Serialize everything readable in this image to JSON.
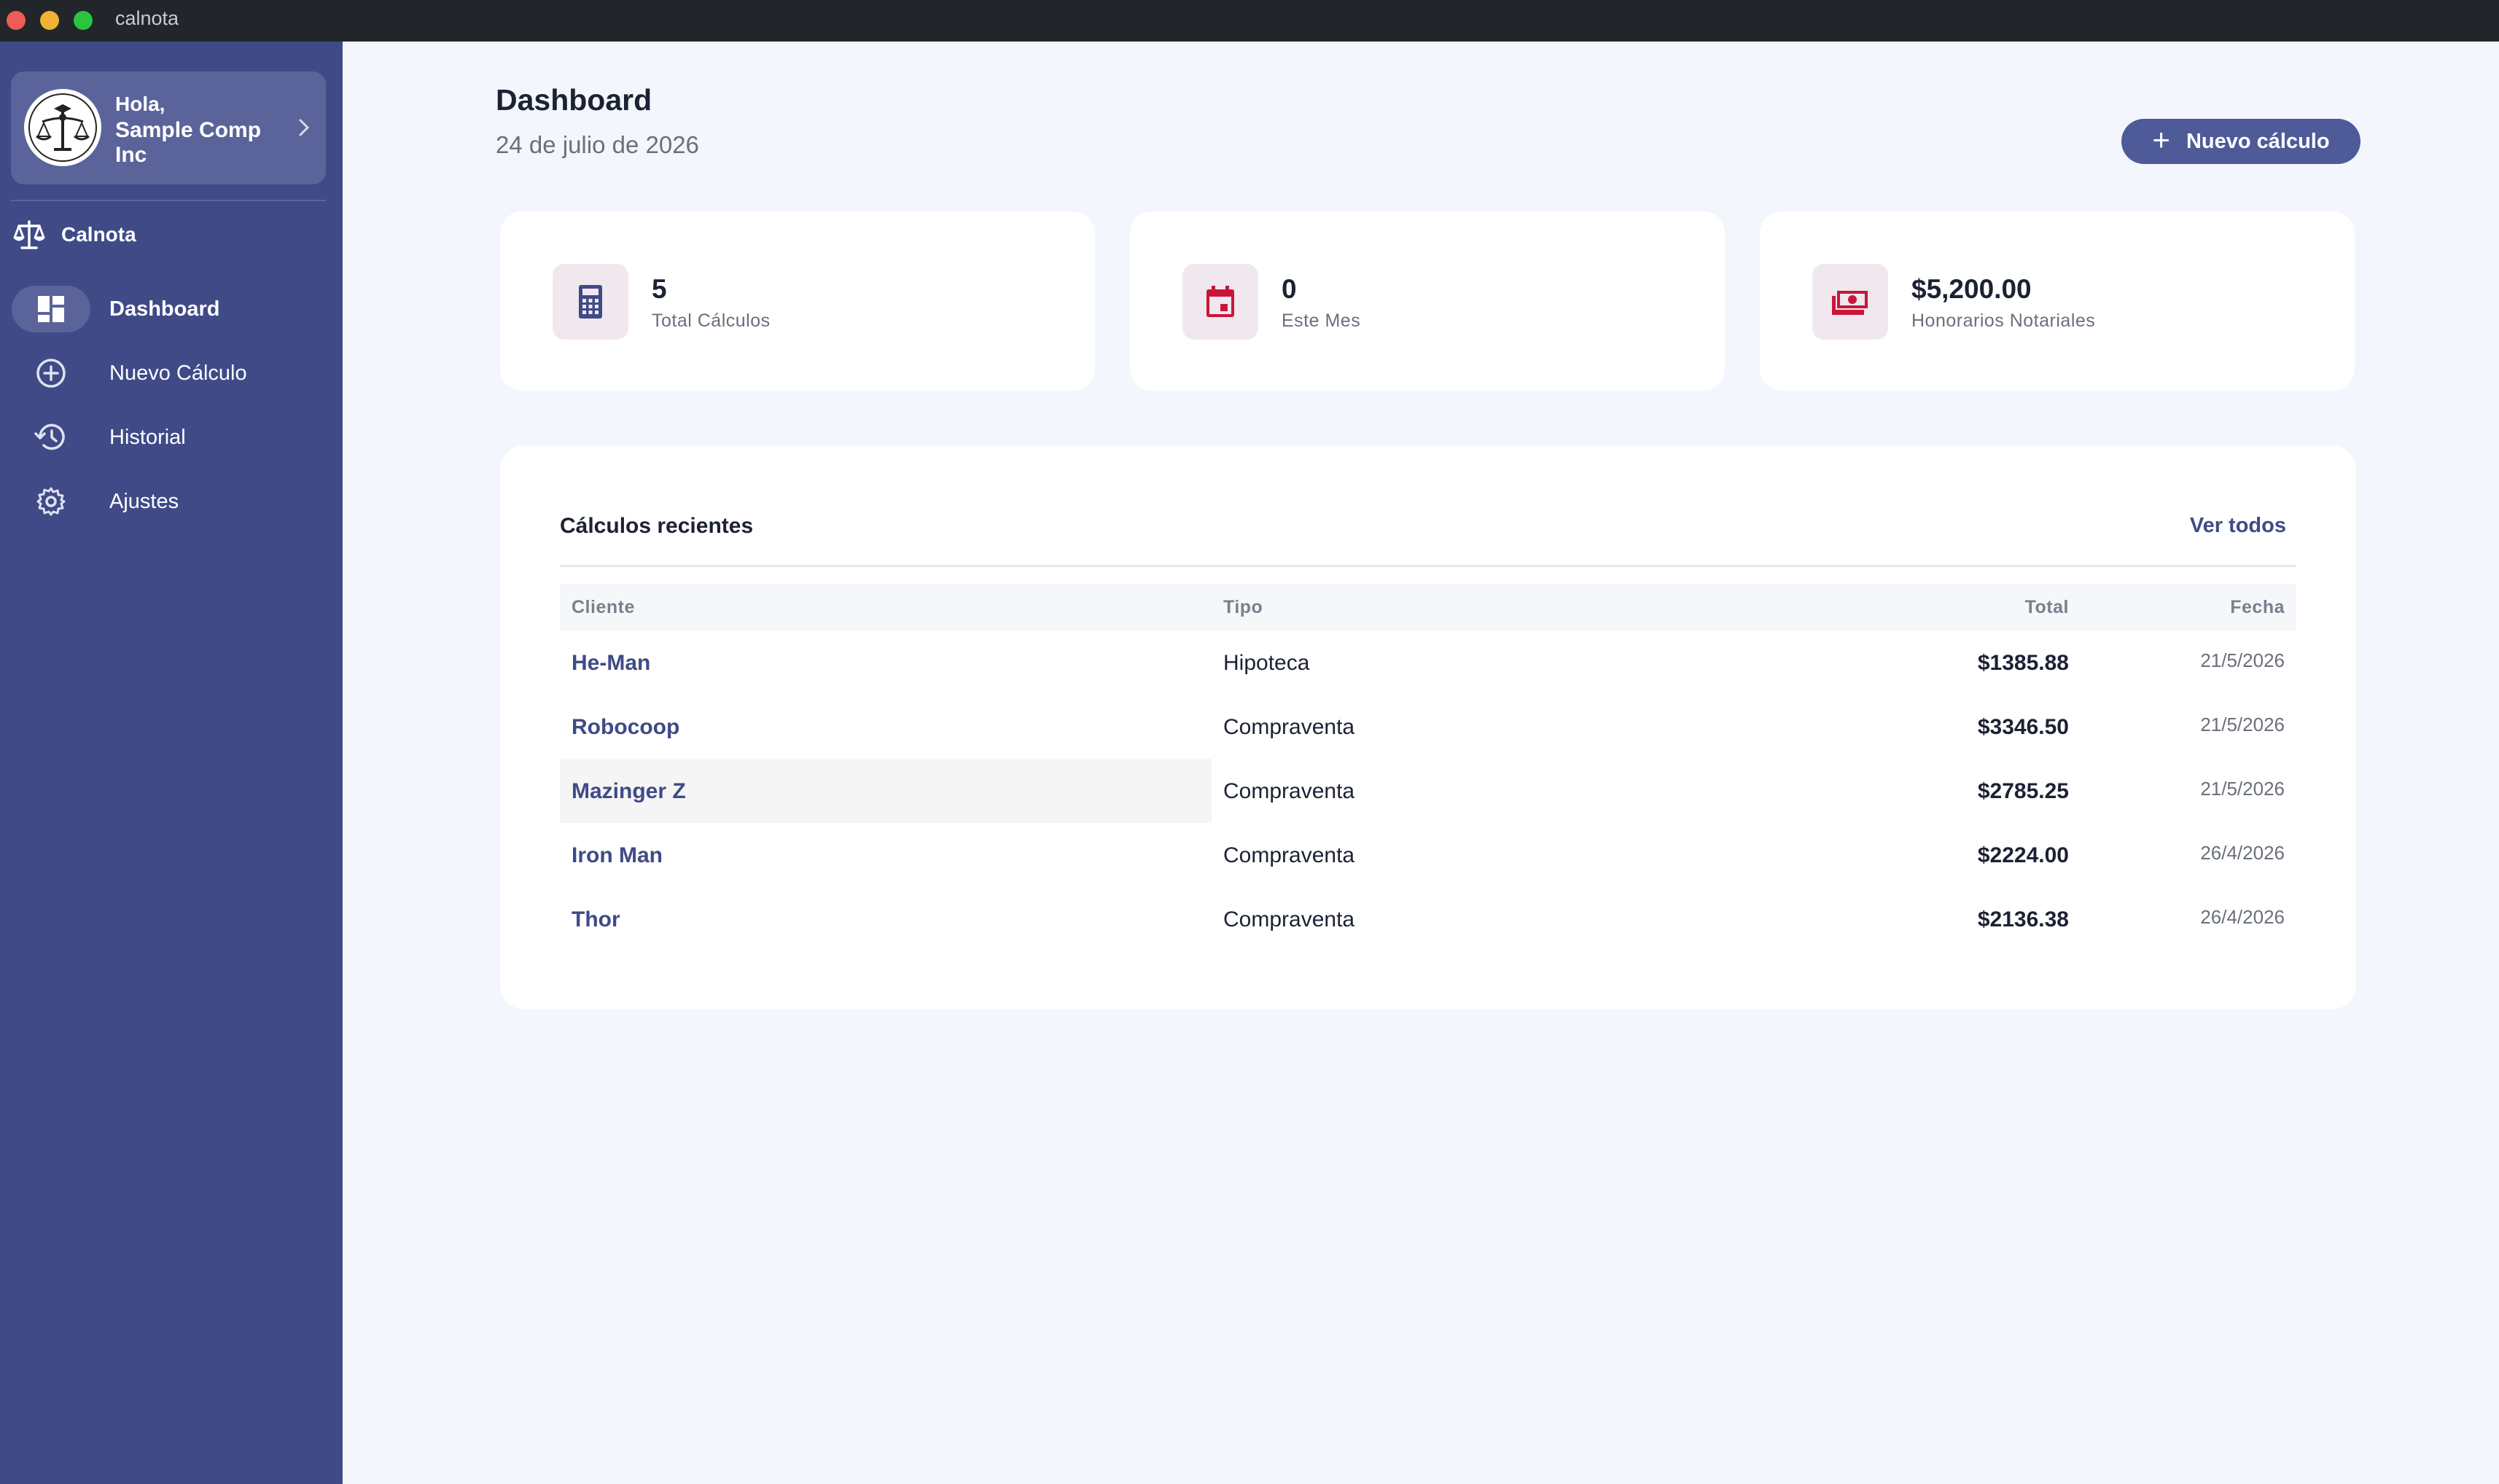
{
  "window": {
    "title": "calnota"
  },
  "sidebar": {
    "greeting": "Hola,",
    "company": "Sample Comp Inc",
    "brand": "Calnota",
    "items": [
      {
        "label": "Dashboard",
        "icon": "dashboard-icon",
        "active": true
      },
      {
        "label": "Nuevo Cálculo",
        "icon": "add-circle-icon",
        "active": false
      },
      {
        "label": "Historial",
        "icon": "history-icon",
        "active": false
      },
      {
        "label": "Ajustes",
        "icon": "gear-icon",
        "active": false
      }
    ]
  },
  "header": {
    "title": "Dashboard",
    "date": "24 de julio de 2026",
    "new_button_label": "Nuevo cálculo"
  },
  "stats": [
    {
      "value": "5",
      "label": "Total Cálculos",
      "icon": "calculator-icon"
    },
    {
      "value": "0",
      "label": "Este Mes",
      "icon": "calendar-icon"
    },
    {
      "value": "$5,200.00",
      "label": "Honorarios Notariales",
      "icon": "money-icon"
    }
  ],
  "recent": {
    "title": "Cálculos recientes",
    "see_all": "Ver todos",
    "columns": {
      "client": "Cliente",
      "type": "Tipo",
      "total": "Total",
      "date": "Fecha"
    },
    "rows": [
      {
        "client": "He-Man",
        "type": "Hipoteca",
        "total": "$1385.88",
        "date": "21/5/2026"
      },
      {
        "client": "Robocoop",
        "type": "Compraventa",
        "total": "$3346.50",
        "date": "21/5/2026"
      },
      {
        "client": "Mazinger Z",
        "type": "Compraventa",
        "total": "$2785.25",
        "date": "21/5/2026"
      },
      {
        "client": "Iron Man",
        "type": "Compraventa",
        "total": "$2224.00",
        "date": "26/4/2026"
      },
      {
        "client": "Thor",
        "type": "Compraventa",
        "total": "$2136.38",
        "date": "26/4/2026"
      }
    ]
  },
  "colors": {
    "sidebar": "#3f4a87",
    "accent": "#4f5a98",
    "icon_red": "#c8163a",
    "icon_indigo": "#3f4a87",
    "background": "#f3f6fc"
  }
}
